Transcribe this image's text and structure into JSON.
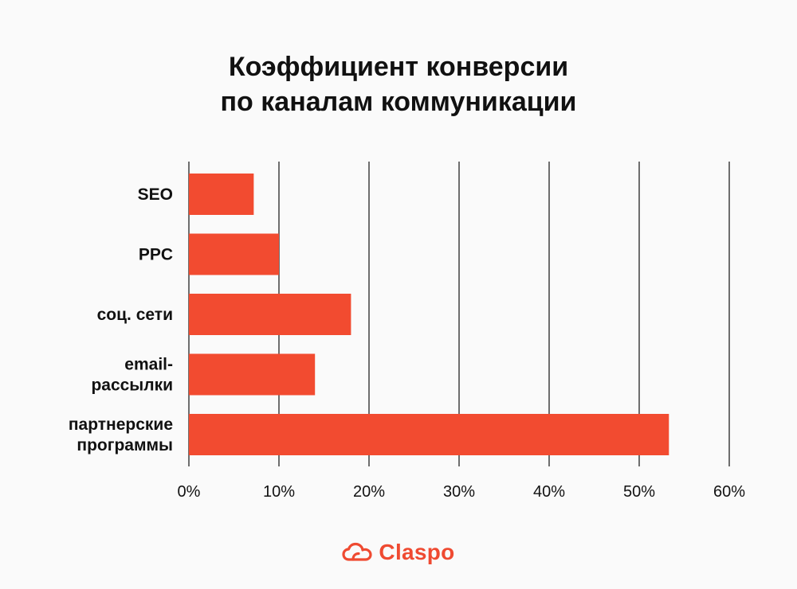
{
  "chart_data": {
    "type": "bar",
    "orientation": "horizontal",
    "title": [
      "Коэффициент конверсии",
      "по каналам коммуникации"
    ],
    "categories": [
      [
        "SEO"
      ],
      [
        "PPC"
      ],
      [
        "соц. сети"
      ],
      [
        "email-",
        "рассылки"
      ],
      [
        "партнерские",
        "программы"
      ]
    ],
    "values": [
      7.2,
      10,
      18,
      14,
      53.3
    ],
    "xlim": [
      0,
      60
    ],
    "ticks": [
      0,
      10,
      20,
      30,
      40,
      50,
      60
    ],
    "tick_labels": [
      "0%",
      "10%",
      "20%",
      "30%",
      "40%",
      "50%",
      "60%"
    ],
    "grid": true,
    "bar_color": "#f24b30"
  },
  "brand": {
    "name": "Claspo",
    "color": "#ef4a31",
    "icon": "cloud-icon"
  }
}
